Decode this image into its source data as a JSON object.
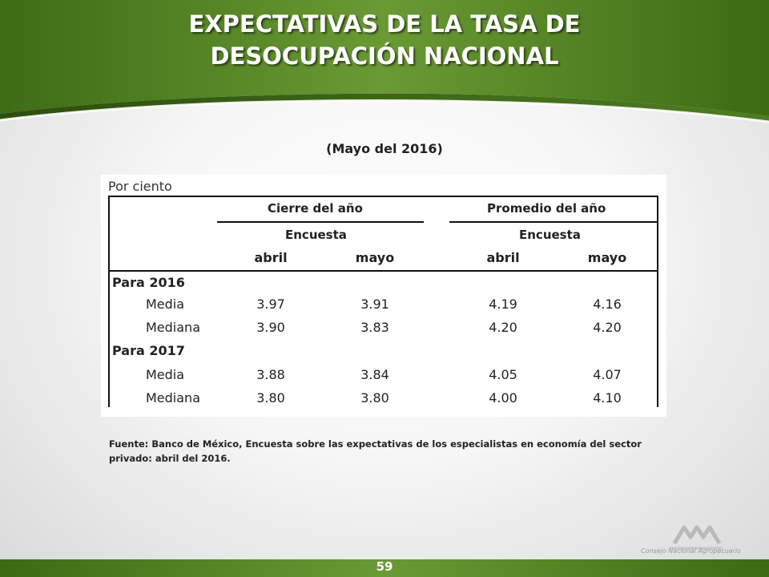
{
  "slide": {
    "title_line1": "EXPECTATIVAS DE LA TASA DE",
    "title_line2": "DESOCUPACIÓN NACIONAL",
    "subtitle": "(Mayo del 2016)",
    "page_number": "59",
    "logo_caption": "Consejo Nacional Agropecuario",
    "colors": {
      "header_green": "#5a8a2a",
      "dark_green": "#2f5a12"
    }
  },
  "table": {
    "unit": "Por ciento",
    "groups": [
      "Cierre del año",
      "Promedio del año"
    ],
    "sub_header": "Encuesta",
    "columns": [
      "abril",
      "mayo",
      "abril",
      "mayo"
    ],
    "sections": [
      {
        "label": "Para 2016",
        "rows": [
          {
            "label": "Media",
            "values": [
              "3.97",
              "3.91",
              "4.19",
              "4.16"
            ]
          },
          {
            "label": "Mediana",
            "values": [
              "3.90",
              "3.83",
              "4.20",
              "4.20"
            ]
          }
        ]
      },
      {
        "label": "Para 2017",
        "rows": [
          {
            "label": "Media",
            "values": [
              "3.88",
              "3.84",
              "4.05",
              "4.07"
            ]
          },
          {
            "label": "Mediana",
            "values": [
              "3.80",
              "3.80",
              "4.00",
              "4.10"
            ]
          }
        ]
      }
    ]
  },
  "source": "Fuente: Banco de México, Encuesta sobre las expectativas de los especialistas en economía del sector privado: abril del 2016."
}
